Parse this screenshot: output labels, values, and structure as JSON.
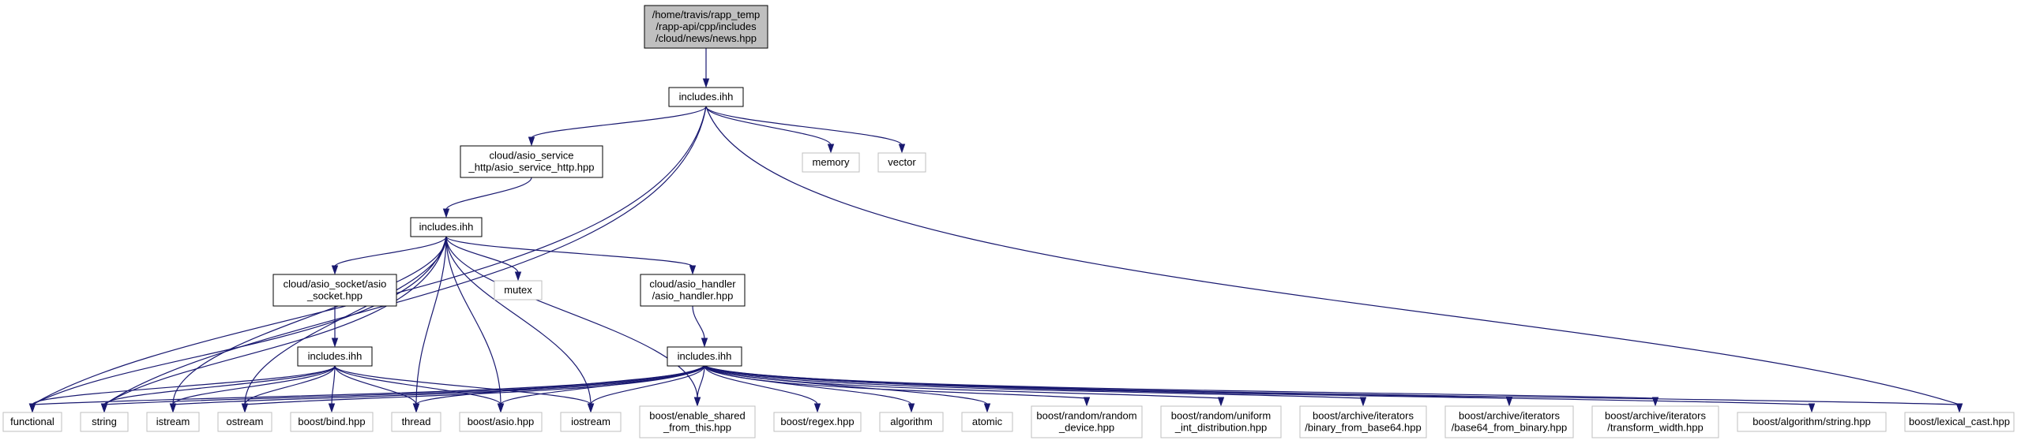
{
  "nodes": [
    {
      "id": "root",
      "kind": "root",
      "lines": [
        "/home/travis/rapp_temp",
        "/rapp-api/cpp/includes",
        "/cloud/news/news.hpp"
      ]
    },
    {
      "id": "inc1",
      "kind": "internal",
      "lines": [
        "includes.ihh"
      ]
    },
    {
      "id": "asio_service",
      "kind": "internal",
      "lines": [
        "cloud/asio_service",
        "_http/asio_service_http.hpp"
      ]
    },
    {
      "id": "memory",
      "kind": "external",
      "lines": [
        "memory"
      ]
    },
    {
      "id": "vector",
      "kind": "external",
      "lines": [
        "vector"
      ]
    },
    {
      "id": "inc2",
      "kind": "internal",
      "lines": [
        "includes.ihh"
      ]
    },
    {
      "id": "asio_socket",
      "kind": "internal",
      "lines": [
        "cloud/asio_socket/asio",
        "_socket.hpp"
      ]
    },
    {
      "id": "mutex",
      "kind": "external",
      "lines": [
        "mutex"
      ]
    },
    {
      "id": "asio_handler",
      "kind": "internal",
      "lines": [
        "cloud/asio_handler",
        "/asio_handler.hpp"
      ]
    },
    {
      "id": "inc3",
      "kind": "internal",
      "lines": [
        "includes.ihh"
      ]
    },
    {
      "id": "inc4",
      "kind": "internal",
      "lines": [
        "includes.ihh"
      ]
    },
    {
      "id": "functional",
      "kind": "external",
      "lines": [
        "functional"
      ]
    },
    {
      "id": "string",
      "kind": "external",
      "lines": [
        "string"
      ]
    },
    {
      "id": "istream",
      "kind": "external",
      "lines": [
        "istream"
      ]
    },
    {
      "id": "ostream",
      "kind": "external",
      "lines": [
        "ostream"
      ]
    },
    {
      "id": "boost_bind",
      "kind": "external",
      "lines": [
        "boost/bind.hpp"
      ]
    },
    {
      "id": "thread",
      "kind": "external",
      "lines": [
        "thread"
      ]
    },
    {
      "id": "boost_asio",
      "kind": "external",
      "lines": [
        "boost/asio.hpp"
      ]
    },
    {
      "id": "iostream",
      "kind": "external",
      "lines": [
        "iostream"
      ]
    },
    {
      "id": "enable_shared",
      "kind": "external",
      "lines": [
        "boost/enable_shared",
        "_from_this.hpp"
      ]
    },
    {
      "id": "regex",
      "kind": "external",
      "lines": [
        "boost/regex.hpp"
      ]
    },
    {
      "id": "algorithm",
      "kind": "external",
      "lines": [
        "algorithm"
      ]
    },
    {
      "id": "atomic",
      "kind": "external",
      "lines": [
        "atomic"
      ]
    },
    {
      "id": "random_device",
      "kind": "external",
      "lines": [
        "boost/random/random",
        "_device.hpp"
      ]
    },
    {
      "id": "uniform_int",
      "kind": "external",
      "lines": [
        "boost/random/uniform",
        "_int_distribution.hpp"
      ]
    },
    {
      "id": "binary_from_base64",
      "kind": "external",
      "lines": [
        "boost/archive/iterators",
        "/binary_from_base64.hpp"
      ]
    },
    {
      "id": "base64_from_binary",
      "kind": "external",
      "lines": [
        "boost/archive/iterators",
        "/base64_from_binary.hpp"
      ]
    },
    {
      "id": "transform_width",
      "kind": "external",
      "lines": [
        "boost/archive/iterators",
        "/transform_width.hpp"
      ]
    },
    {
      "id": "algo_string",
      "kind": "external",
      "lines": [
        "boost/algorithm/string.hpp"
      ]
    },
    {
      "id": "lexical_cast",
      "kind": "external",
      "lines": [
        "boost/lexical_cast.hpp"
      ]
    }
  ],
  "edges": [
    [
      "root",
      "inc1"
    ],
    [
      "inc1",
      "asio_service"
    ],
    [
      "inc1",
      "memory"
    ],
    [
      "inc1",
      "vector"
    ],
    [
      "inc1",
      "functional"
    ],
    [
      "inc1",
      "string"
    ],
    [
      "inc1",
      "lexical_cast"
    ],
    [
      "asio_service",
      "inc2"
    ],
    [
      "inc2",
      "asio_socket"
    ],
    [
      "inc2",
      "mutex"
    ],
    [
      "inc2",
      "asio_handler"
    ],
    [
      "inc2",
      "functional"
    ],
    [
      "inc2",
      "string"
    ],
    [
      "inc2",
      "istream"
    ],
    [
      "inc2",
      "ostream"
    ],
    [
      "inc2",
      "thread"
    ],
    [
      "inc2",
      "boost_asio"
    ],
    [
      "inc2",
      "iostream"
    ],
    [
      "inc2",
      "enable_shared"
    ],
    [
      "asio_socket",
      "inc3"
    ],
    [
      "asio_handler",
      "inc4"
    ],
    [
      "inc3",
      "functional"
    ],
    [
      "inc3",
      "string"
    ],
    [
      "inc3",
      "istream"
    ],
    [
      "inc3",
      "ostream"
    ],
    [
      "inc3",
      "boost_bind"
    ],
    [
      "inc3",
      "thread"
    ],
    [
      "inc3",
      "boost_asio"
    ],
    [
      "inc3",
      "iostream"
    ],
    [
      "inc4",
      "functional"
    ],
    [
      "inc4",
      "string"
    ],
    [
      "inc4",
      "istream"
    ],
    [
      "inc4",
      "ostream"
    ],
    [
      "inc4",
      "thread"
    ],
    [
      "inc4",
      "boost_asio"
    ],
    [
      "inc4",
      "iostream"
    ],
    [
      "inc4",
      "enable_shared"
    ],
    [
      "inc4",
      "regex"
    ],
    [
      "inc4",
      "algorithm"
    ],
    [
      "inc4",
      "atomic"
    ],
    [
      "inc4",
      "random_device"
    ],
    [
      "inc4",
      "uniform_int"
    ],
    [
      "inc4",
      "binary_from_base64"
    ],
    [
      "inc4",
      "base64_from_binary"
    ],
    [
      "inc4",
      "transform_width"
    ],
    [
      "inc4",
      "algo_string"
    ],
    [
      "inc4",
      "lexical_cast"
    ]
  ]
}
